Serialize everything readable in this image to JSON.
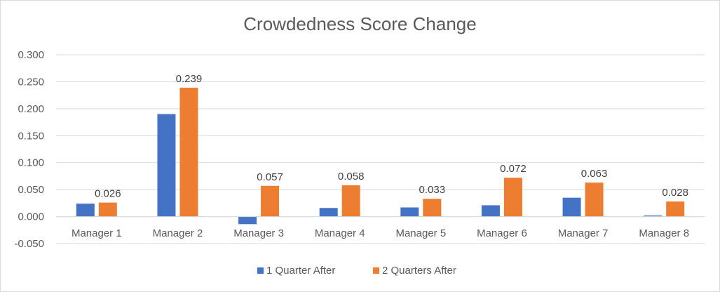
{
  "chart_data": {
    "type": "bar",
    "title": "Crowdedness Score Change",
    "xlabel": "",
    "ylabel": "",
    "categories": [
      "Manager 1",
      "Manager 2",
      "Manager 3",
      "Manager 4",
      "Manager 5",
      "Manager 6",
      "Manager 7",
      "Manager 8"
    ],
    "series": [
      {
        "name": "1 Quarter After",
        "color": "#4472c4",
        "values": [
          0.024,
          0.19,
          -0.014,
          0.016,
          0.017,
          0.021,
          0.035,
          0.002
        ],
        "labels": []
      },
      {
        "name": "2 Quarters After",
        "color": "#ed7d31",
        "values": [
          0.026,
          0.239,
          0.057,
          0.058,
          0.033,
          0.072,
          0.063,
          0.028
        ],
        "labels": [
          "0.026",
          "0.239",
          "0.057",
          "0.058",
          "0.033",
          "0.072",
          "0.063",
          "0.028"
        ]
      }
    ],
    "ylim": [
      -0.05,
      0.3
    ],
    "yticks": [
      "0.300",
      "0.250",
      "0.200",
      "0.150",
      "0.100",
      "0.050",
      "0.000",
      "-0.050"
    ],
    "ytick_values": [
      0.3,
      0.25,
      0.2,
      0.15,
      0.1,
      0.05,
      0.0,
      -0.05
    ],
    "grid": true,
    "legend": "bottom"
  }
}
